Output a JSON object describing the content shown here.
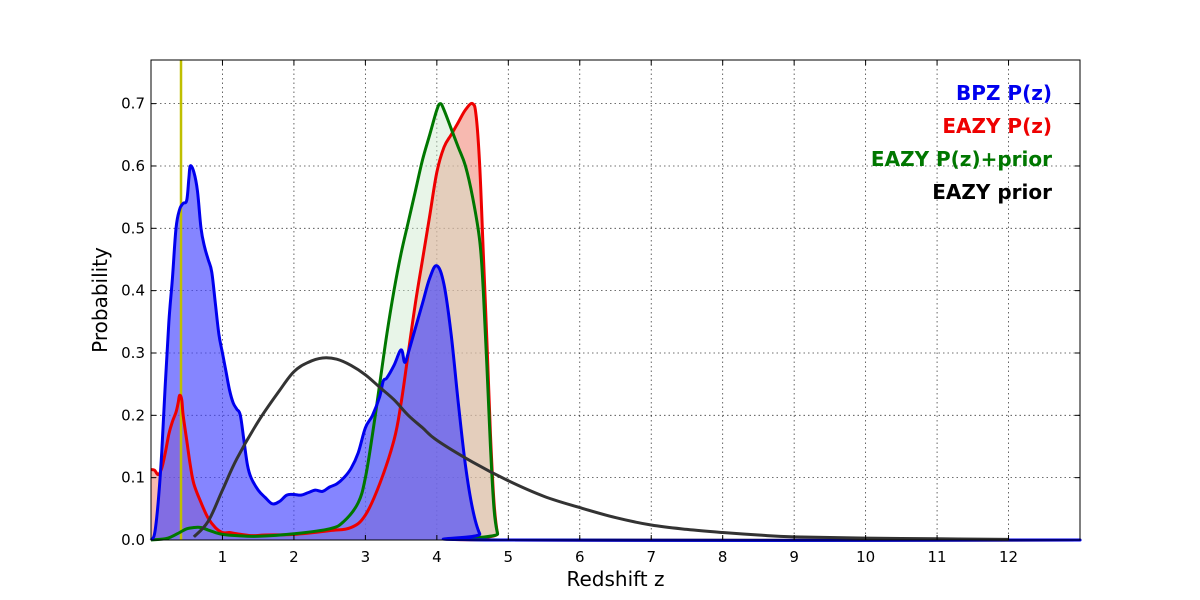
{
  "chart_data": {
    "type": "line",
    "xlabel": "Redshift z",
    "ylabel": "Probability",
    "xlim": [
      0,
      13
    ],
    "ylim": [
      0,
      0.77
    ],
    "xticks": [
      "1",
      "2",
      "3",
      "4",
      "5",
      "6",
      "7",
      "8",
      "9",
      "10",
      "11",
      "12"
    ],
    "yticks": [
      "0.0",
      "0.1",
      "0.2",
      "0.3",
      "0.4",
      "0.5",
      "0.6",
      "0.7"
    ],
    "grid": true,
    "legend_position": "top-right",
    "vertical_marker": {
      "x": 0.42,
      "color": "#bfbf00"
    },
    "series": [
      {
        "name": "EAZY P(z)",
        "color": "#ee0000",
        "fill": "#f08070",
        "fill_opacity": 0.55,
        "points": [
          [
            0,
            0.113
          ],
          [
            0.05,
            0.112
          ],
          [
            0.1,
            0.105
          ],
          [
            0.15,
            0.115
          ],
          [
            0.2,
            0.14
          ],
          [
            0.25,
            0.17
          ],
          [
            0.3,
            0.19
          ],
          [
            0.35,
            0.205
          ],
          [
            0.38,
            0.22
          ],
          [
            0.4,
            0.232
          ],
          [
            0.43,
            0.225
          ],
          [
            0.45,
            0.2
          ],
          [
            0.5,
            0.16
          ],
          [
            0.55,
            0.12
          ],
          [
            0.6,
            0.09
          ],
          [
            0.7,
            0.06
          ],
          [
            0.8,
            0.035
          ],
          [
            0.9,
            0.02
          ],
          [
            1.0,
            0.012
          ],
          [
            1.1,
            0.012
          ],
          [
            1.2,
            0.01
          ],
          [
            1.4,
            0.007
          ],
          [
            1.6,
            0.008
          ],
          [
            2.0,
            0.009
          ],
          [
            2.5,
            0.015
          ],
          [
            2.8,
            0.02
          ],
          [
            3.0,
            0.04
          ],
          [
            3.2,
            0.09
          ],
          [
            3.4,
            0.16
          ],
          [
            3.5,
            0.22
          ],
          [
            3.6,
            0.3
          ],
          [
            3.7,
            0.38
          ],
          [
            3.8,
            0.45
          ],
          [
            3.9,
            0.52
          ],
          [
            4.0,
            0.59
          ],
          [
            4.1,
            0.63
          ],
          [
            4.2,
            0.65
          ],
          [
            4.3,
            0.67
          ],
          [
            4.4,
            0.69
          ],
          [
            4.5,
            0.7
          ],
          [
            4.55,
            0.68
          ],
          [
            4.6,
            0.6
          ],
          [
            4.65,
            0.46
          ],
          [
            4.7,
            0.32
          ],
          [
            4.75,
            0.17
          ],
          [
            4.8,
            0.06
          ],
          [
            4.85,
            0.01
          ],
          [
            4.9,
            0
          ],
          [
            13,
            0
          ]
        ]
      },
      {
        "name": "EAZY P(z)+prior",
        "color": "#007700",
        "fill": "#cce8cc",
        "fill_opacity": 0.45,
        "points": [
          [
            0,
            0
          ],
          [
            0.2,
            0.002
          ],
          [
            0.3,
            0.006
          ],
          [
            0.4,
            0.012
          ],
          [
            0.5,
            0.018
          ],
          [
            0.6,
            0.02
          ],
          [
            0.7,
            0.02
          ],
          [
            0.8,
            0.016
          ],
          [
            0.9,
            0.012
          ],
          [
            1.0,
            0.009
          ],
          [
            1.2,
            0.007
          ],
          [
            1.5,
            0.006
          ],
          [
            2.0,
            0.01
          ],
          [
            2.5,
            0.018
          ],
          [
            2.7,
            0.03
          ],
          [
            2.9,
            0.06
          ],
          [
            3.0,
            0.1
          ],
          [
            3.1,
            0.17
          ],
          [
            3.2,
            0.25
          ],
          [
            3.3,
            0.33
          ],
          [
            3.4,
            0.4
          ],
          [
            3.5,
            0.46
          ],
          [
            3.6,
            0.51
          ],
          [
            3.7,
            0.56
          ],
          [
            3.8,
            0.61
          ],
          [
            3.9,
            0.65
          ],
          [
            4.0,
            0.69
          ],
          [
            4.05,
            0.7
          ],
          [
            4.1,
            0.69
          ],
          [
            4.2,
            0.66
          ],
          [
            4.3,
            0.63
          ],
          [
            4.4,
            0.6
          ],
          [
            4.5,
            0.55
          ],
          [
            4.6,
            0.48
          ],
          [
            4.65,
            0.4
          ],
          [
            4.7,
            0.28
          ],
          [
            4.75,
            0.15
          ],
          [
            4.8,
            0.05
          ],
          [
            4.85,
            0.01
          ],
          [
            4.9,
            0
          ],
          [
            13,
            0
          ]
        ]
      },
      {
        "name": "BPZ P(z)",
        "color": "#0000ee",
        "fill": "#4444ff",
        "fill_opacity": 0.65,
        "points": [
          [
            0,
            0
          ],
          [
            0.05,
            0.01
          ],
          [
            0.1,
            0.06
          ],
          [
            0.15,
            0.14
          ],
          [
            0.2,
            0.25
          ],
          [
            0.25,
            0.35
          ],
          [
            0.3,
            0.42
          ],
          [
            0.35,
            0.5
          ],
          [
            0.4,
            0.53
          ],
          [
            0.45,
            0.54
          ],
          [
            0.5,
            0.545
          ],
          [
            0.53,
            0.58
          ],
          [
            0.55,
            0.6
          ],
          [
            0.6,
            0.59
          ],
          [
            0.65,
            0.56
          ],
          [
            0.7,
            0.5
          ],
          [
            0.75,
            0.47
          ],
          [
            0.8,
            0.45
          ],
          [
            0.85,
            0.43
          ],
          [
            0.9,
            0.38
          ],
          [
            0.95,
            0.33
          ],
          [
            1.0,
            0.3
          ],
          [
            1.05,
            0.27
          ],
          [
            1.1,
            0.24
          ],
          [
            1.15,
            0.22
          ],
          [
            1.2,
            0.21
          ],
          [
            1.25,
            0.2
          ],
          [
            1.3,
            0.16
          ],
          [
            1.35,
            0.12
          ],
          [
            1.4,
            0.1
          ],
          [
            1.5,
            0.08
          ],
          [
            1.6,
            0.068
          ],
          [
            1.7,
            0.058
          ],
          [
            1.8,
            0.062
          ],
          [
            1.9,
            0.072
          ],
          [
            2.0,
            0.073
          ],
          [
            2.1,
            0.072
          ],
          [
            2.2,
            0.076
          ],
          [
            2.3,
            0.08
          ],
          [
            2.4,
            0.078
          ],
          [
            2.5,
            0.085
          ],
          [
            2.6,
            0.09
          ],
          [
            2.7,
            0.1
          ],
          [
            2.8,
            0.115
          ],
          [
            2.9,
            0.14
          ],
          [
            3.0,
            0.18
          ],
          [
            3.1,
            0.2
          ],
          [
            3.2,
            0.23
          ],
          [
            3.25,
            0.255
          ],
          [
            3.3,
            0.26
          ],
          [
            3.4,
            0.28
          ],
          [
            3.5,
            0.305
          ],
          [
            3.55,
            0.285
          ],
          [
            3.6,
            0.3
          ],
          [
            3.7,
            0.34
          ],
          [
            3.8,
            0.38
          ],
          [
            3.9,
            0.42
          ],
          [
            4.0,
            0.44
          ],
          [
            4.1,
            0.41
          ],
          [
            4.2,
            0.33
          ],
          [
            4.3,
            0.22
          ],
          [
            4.4,
            0.12
          ],
          [
            4.5,
            0.05
          ],
          [
            4.6,
            0.01
          ],
          [
            4.7,
            0
          ],
          [
            12,
            0
          ],
          [
            13,
            0
          ]
        ]
      },
      {
        "name": "EAZY prior",
        "color": "#333333",
        "fill": "none",
        "fill_opacity": 0,
        "points": [
          [
            0.6,
            0.005
          ],
          [
            0.8,
            0.03
          ],
          [
            1.0,
            0.08
          ],
          [
            1.2,
            0.13
          ],
          [
            1.5,
            0.19
          ],
          [
            1.8,
            0.24
          ],
          [
            2.0,
            0.27
          ],
          [
            2.2,
            0.285
          ],
          [
            2.4,
            0.292
          ],
          [
            2.6,
            0.29
          ],
          [
            2.8,
            0.28
          ],
          [
            3.0,
            0.265
          ],
          [
            3.2,
            0.245
          ],
          [
            3.4,
            0.225
          ],
          [
            3.6,
            0.2
          ],
          [
            3.8,
            0.18
          ],
          [
            4.0,
            0.16
          ],
          [
            4.5,
            0.125
          ],
          [
            5.0,
            0.095
          ],
          [
            5.5,
            0.07
          ],
          [
            6.0,
            0.052
          ],
          [
            6.5,
            0.036
          ],
          [
            7.0,
            0.024
          ],
          [
            7.5,
            0.017
          ],
          [
            8.0,
            0.012
          ],
          [
            8.5,
            0.008
          ],
          [
            9.0,
            0.005
          ],
          [
            10.0,
            0.003
          ],
          [
            11.0,
            0.002
          ],
          [
            12.0,
            0.001
          ]
        ]
      }
    ],
    "legend": [
      {
        "label": "BPZ P(z)",
        "color": "#0000ee"
      },
      {
        "label": "EAZY P(z)",
        "color": "#ee0000"
      },
      {
        "label": "EAZY P(z)+prior",
        "color": "#007700"
      },
      {
        "label": "EAZY prior",
        "color": "#000000"
      }
    ]
  }
}
